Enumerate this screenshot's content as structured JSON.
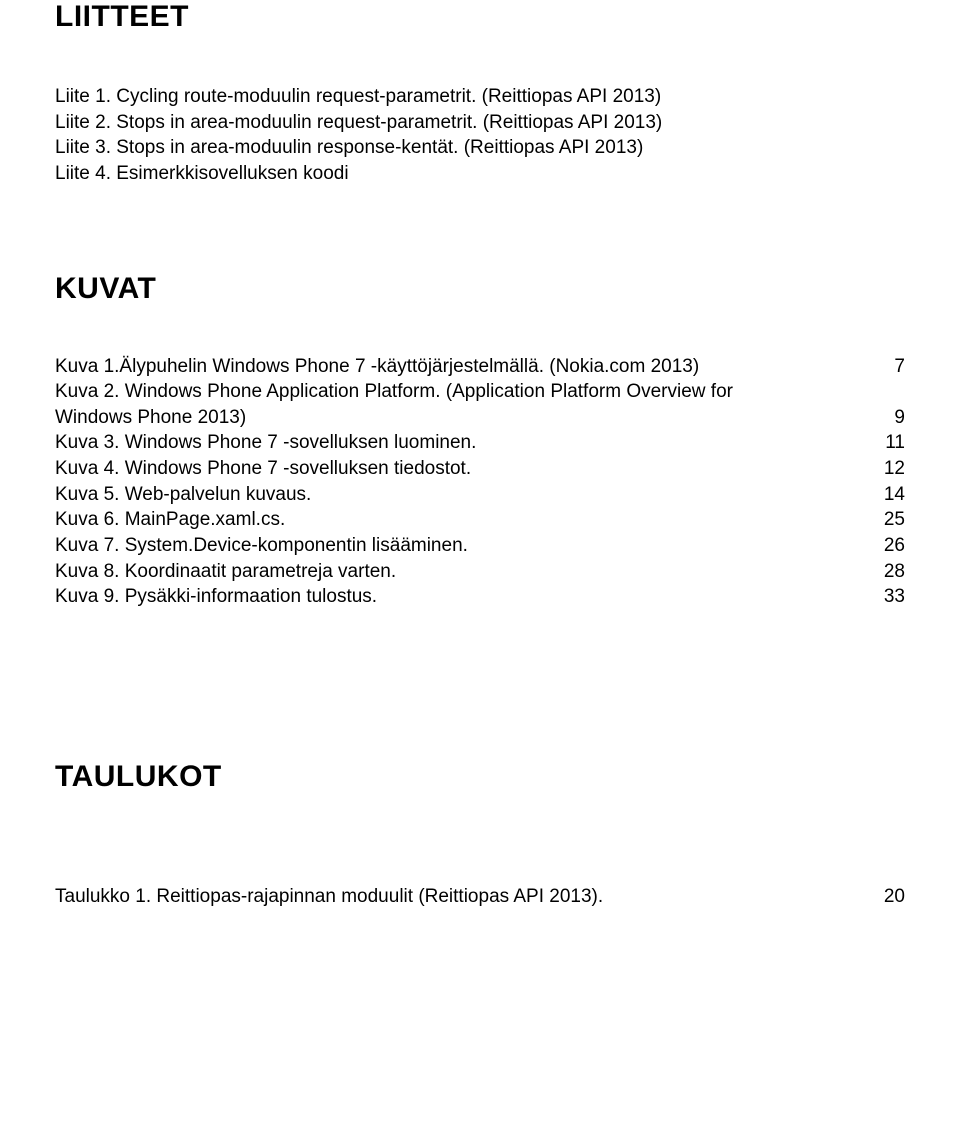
{
  "colors": {
    "text": "#000000",
    "background": "#ffffff"
  },
  "typography": {
    "heading_fontsize": 30,
    "body_fontsize": 19,
    "font_family": "Arial"
  },
  "sections": {
    "liitteet": {
      "heading": "LIITTEET",
      "items": [
        "Liite 1. Cycling route-moduulin request-parametrit. (Reittiopas API 2013)",
        "Liite 2. Stops in area-moduulin request-parametrit. (Reittiopas API 2013)",
        "Liite 3. Stops in area-moduulin response-kentät. (Reittiopas API 2013)",
        "Liite 4. Esimerkkisovelluksen koodi"
      ]
    },
    "kuvat": {
      "heading": "KUVAT",
      "items": [
        {
          "text_line1": "Kuva 1.Älypuhelin Windows Phone 7 -käyttöjärjestelmällä. (Nokia.com 2013)",
          "page": "7"
        },
        {
          "text_line1": "Kuva 2. Windows Phone Application Platform. (Application Platform Overview for",
          "text_line2": "Windows Phone 2013)",
          "page": "9"
        },
        {
          "text_line1": "Kuva 3. Windows Phone 7 -sovelluksen luominen.",
          "page": "11"
        },
        {
          "text_line1": "Kuva 4. Windows Phone 7 -sovelluksen tiedostot.",
          "page": "12"
        },
        {
          "text_line1": "Kuva 5. Web-palvelun kuvaus.",
          "page": "14"
        },
        {
          "text_line1": "Kuva 6. MainPage.xaml.cs.",
          "page": "25"
        },
        {
          "text_line1": "Kuva 7. System.Device-komponentin lisääminen.",
          "page": "26"
        },
        {
          "text_line1": "Kuva 8. Koordinaatit parametreja varten.",
          "page": "28"
        },
        {
          "text_line1": "Kuva 9. Pysäkki-informaation tulostus.",
          "page": "33"
        }
      ]
    },
    "taulukot": {
      "heading": "TAULUKOT",
      "items": [
        {
          "text": "Taulukko 1. Reittiopas-rajapinnan moduulit (Reittiopas API 2013).",
          "page": "20"
        }
      ]
    }
  }
}
